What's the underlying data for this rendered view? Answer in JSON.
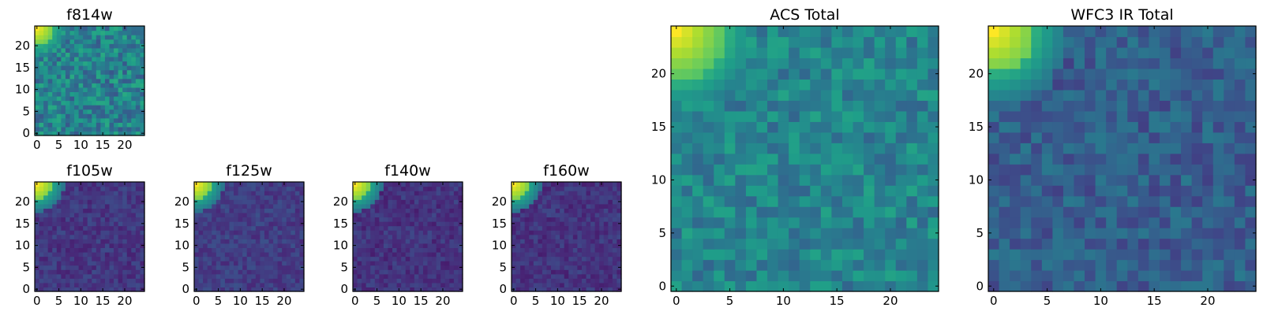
{
  "chart_data": [
    {
      "type": "heatmap",
      "title": "f814w",
      "colormap": "viridis",
      "grid_size": 25,
      "xticks": [
        0,
        5,
        10,
        15,
        20
      ],
      "yticks": [
        0,
        5,
        10,
        15,
        20
      ],
      "xlim": [
        -0.5,
        24.5
      ],
      "ylim": [
        -0.5,
        24.5
      ],
      "level": 0.44,
      "noise": 0.34,
      "bright_corner": "top-left",
      "corner_radius": 4.0
    },
    {
      "type": "heatmap",
      "title": "f105w",
      "colormap": "viridis",
      "grid_size": 25,
      "xticks": [
        0,
        5,
        10,
        15,
        20
      ],
      "yticks": [
        0,
        5,
        10,
        15,
        20
      ],
      "xlim": [
        -0.5,
        24.5
      ],
      "ylim": [
        -0.5,
        24.5
      ],
      "level": 0.16,
      "noise": 0.14,
      "bright_corner": "top-left",
      "corner_radius": 3.2
    },
    {
      "type": "heatmap",
      "title": "f125w",
      "colormap": "viridis",
      "grid_size": 25,
      "xticks": [
        0,
        5,
        10,
        15,
        20
      ],
      "yticks": [
        0,
        5,
        10,
        15,
        20
      ],
      "xlim": [
        -0.5,
        24.5
      ],
      "ylim": [
        -0.5,
        24.5
      ],
      "level": 0.18,
      "noise": 0.14,
      "bright_corner": "top-left",
      "corner_radius": 3.2
    },
    {
      "type": "heatmap",
      "title": "f140w",
      "colormap": "viridis",
      "grid_size": 25,
      "xticks": [
        0,
        5,
        10,
        15,
        20
      ],
      "yticks": [
        0,
        5,
        10,
        15,
        20
      ],
      "xlim": [
        -0.5,
        24.5
      ],
      "ylim": [
        -0.5,
        24.5
      ],
      "level": 0.15,
      "noise": 0.14,
      "bright_corner": "top-left",
      "corner_radius": 3.2
    },
    {
      "type": "heatmap",
      "title": "f160w",
      "colormap": "viridis",
      "grid_size": 25,
      "xticks": [
        0,
        5,
        10,
        15,
        20
      ],
      "yticks": [
        0,
        5,
        10,
        15,
        20
      ],
      "xlim": [
        -0.5,
        24.5
      ],
      "ylim": [
        -0.5,
        24.5
      ],
      "level": 0.15,
      "noise": 0.14,
      "bright_corner": "top-left",
      "corner_radius": 3.2
    },
    {
      "type": "heatmap",
      "title": "ACS Total",
      "colormap": "viridis",
      "grid_size": 25,
      "xticks": [
        0,
        5,
        10,
        15,
        20
      ],
      "yticks": [
        0,
        5,
        10,
        15,
        20
      ],
      "xlim": [
        -0.5,
        24.5
      ],
      "ylim": [
        -0.5,
        24.5
      ],
      "level": 0.45,
      "noise": 0.26,
      "bright_corner": "top-left",
      "corner_radius": 5.0
    },
    {
      "type": "heatmap",
      "title": "WFC3 IR Total",
      "colormap": "viridis",
      "grid_size": 25,
      "xticks": [
        0,
        5,
        10,
        15,
        20
      ],
      "yticks": [
        0,
        5,
        10,
        15,
        20
      ],
      "xlim": [
        -0.5,
        24.5
      ],
      "ylim": [
        -0.5,
        24.5
      ],
      "level": 0.3,
      "noise": 0.22,
      "bright_corner": "top-left",
      "corner_radius": 4.0
    }
  ]
}
